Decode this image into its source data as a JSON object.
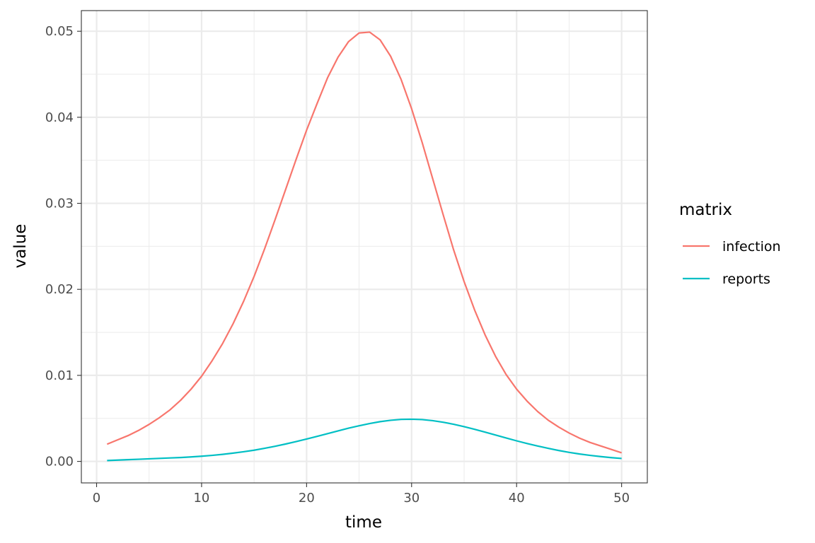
{
  "chart_data": {
    "type": "line",
    "title": "",
    "xlabel": "time",
    "ylabel": "value",
    "xlim": [
      -1.45,
      52.45
    ],
    "ylim": [
      -0.0025,
      0.0524
    ],
    "x_ticks": [
      0,
      10,
      20,
      30,
      40,
      50
    ],
    "x_tick_labels": [
      "0",
      "10",
      "20",
      "30",
      "40",
      "50"
    ],
    "y_ticks": [
      0,
      0.01,
      0.02,
      0.03,
      0.04,
      0.05
    ],
    "y_tick_labels": [
      "0.00",
      "0.01",
      "0.02",
      "0.03",
      "0.04",
      "0.05"
    ],
    "grid": true,
    "legend": {
      "title": "matrix",
      "position": "right"
    },
    "x": [
      1,
      2,
      3,
      4,
      5,
      6,
      7,
      8,
      9,
      10,
      11,
      12,
      13,
      14,
      15,
      16,
      17,
      18,
      19,
      20,
      21,
      22,
      23,
      24,
      25,
      26,
      27,
      28,
      29,
      30,
      31,
      32,
      33,
      34,
      35,
      36,
      37,
      38,
      39,
      40,
      41,
      42,
      43,
      44,
      45,
      46,
      47,
      48,
      49,
      50
    ],
    "series": [
      {
        "name": "infection",
        "color": "#f8766d",
        "values": [
          0.002,
          0.0025,
          0.003,
          0.0036,
          0.0043,
          0.0051,
          0.006,
          0.0071,
          0.0084,
          0.0099,
          0.0117,
          0.0137,
          0.016,
          0.0186,
          0.0215,
          0.0247,
          0.0281,
          0.0316,
          0.0351,
          0.0385,
          0.0416,
          0.0446,
          0.047,
          0.0488,
          0.0498,
          0.0499,
          0.049,
          0.0471,
          0.0444,
          0.041,
          0.0371,
          0.0329,
          0.0287,
          0.0246,
          0.0209,
          0.0176,
          0.0147,
          0.0122,
          0.0101,
          0.0084,
          0.007,
          0.0058,
          0.0048,
          0.004,
          0.0033,
          0.0027,
          0.0022,
          0.0018,
          0.0014,
          0.001
        ]
      },
      {
        "name": "reports",
        "color": "#00bfc4",
        "values": [
          0.0001,
          0.00015,
          0.0002,
          0.00025,
          0.0003,
          0.00035,
          0.0004,
          0.00045,
          0.00052,
          0.0006,
          0.0007,
          0.00082,
          0.00096,
          0.00112,
          0.0013,
          0.00152,
          0.00176,
          0.00202,
          0.0023,
          0.0026,
          0.00291,
          0.00323,
          0.00355,
          0.00386,
          0.00414,
          0.0044,
          0.00462,
          0.00478,
          0.00488,
          0.0049,
          0.00486,
          0.00474,
          0.00455,
          0.00432,
          0.00404,
          0.00373,
          0.0034,
          0.00306,
          0.00272,
          0.00239,
          0.00208,
          0.00179,
          0.00152,
          0.00127,
          0.00105,
          0.00086,
          0.0007,
          0.00056,
          0.00044,
          0.00034
        ]
      }
    ]
  }
}
